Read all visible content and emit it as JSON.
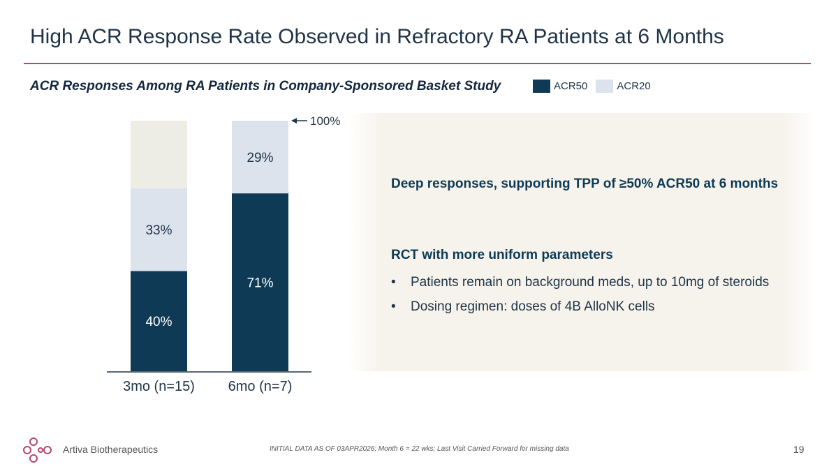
{
  "slide": {
    "title": "High ACR Response Rate Observed in Refractory RA Patients at 6 Months",
    "footer_brand": "Artiva Biotherapeutics",
    "footer_note": "INITIAL DATA AS OF 03APR2026; Month 6 = 22 wks; Last Visit Carried Forward for missing data",
    "page_number": "19"
  },
  "panel": {
    "heading1": "Deep responses, supporting TPP of ≥50% ACR50 at 6 months",
    "heading2": "RCT with more uniform parameters",
    "bullets": [
      "Patients remain on background meds, up to 10mg of steroids",
      "Dosing regimen: doses of 4B AlloNK cells"
    ],
    "bullet_glyph": "•"
  },
  "colors": {
    "acr50": "#0e3a55",
    "acr20": "#dde3ed",
    "remainder": "#eeede5",
    "accent": "#b5476c"
  },
  "chart_data": {
    "type": "bar",
    "stacked": true,
    "title": "ACR Responses Among RA Patients in Company-Sponsored Basket Study",
    "categories": [
      "3mo (n=15)",
      "6mo (n=7)"
    ],
    "series": [
      {
        "name": "ACR50",
        "values": [
          40,
          71
        ],
        "labels": [
          "40%",
          "71%"
        ]
      },
      {
        "name": "ACR20",
        "values": [
          33,
          29
        ],
        "labels": [
          "33%",
          "29%"
        ]
      }
    ],
    "remainder_values": [
      27,
      0
    ],
    "ylim": [
      0,
      100
    ],
    "annotation": "100%",
    "legend_position": "top-right",
    "grid": false
  }
}
